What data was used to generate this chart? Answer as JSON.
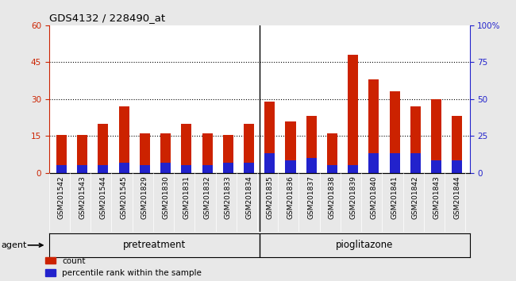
{
  "title": "GDS4132 / 228490_at",
  "samples": [
    "GSM201542",
    "GSM201543",
    "GSM201544",
    "GSM201545",
    "GSM201829",
    "GSM201830",
    "GSM201831",
    "GSM201832",
    "GSM201833",
    "GSM201834",
    "GSM201835",
    "GSM201836",
    "GSM201837",
    "GSM201838",
    "GSM201839",
    "GSM201840",
    "GSM201841",
    "GSM201842",
    "GSM201843",
    "GSM201844"
  ],
  "count_values": [
    15.5,
    15.5,
    20.0,
    27.0,
    16.0,
    16.0,
    20.0,
    16.0,
    15.5,
    20.0,
    29.0,
    21.0,
    23.0,
    16.0,
    48.0,
    38.0,
    33.0,
    27.0,
    30.0,
    23.0
  ],
  "percentile_values": [
    3,
    3,
    3,
    4,
    3,
    4,
    3,
    3,
    4,
    4,
    8,
    5,
    6,
    3,
    3,
    8,
    8,
    8,
    5,
    5
  ],
  "group1_count": 10,
  "group1_label": "pretreatment",
  "group2_label": "pioglitazone",
  "group1_color": "#99ee99",
  "group2_color": "#33cc33",
  "bar_color_red": "#cc2200",
  "bar_color_blue": "#2222cc",
  "ylim_left": [
    0,
    60
  ],
  "ylim_right": [
    0,
    100
  ],
  "yticks_left": [
    0,
    15,
    30,
    45,
    60
  ],
  "yticks_right": [
    0,
    25,
    50,
    75,
    100
  ],
  "ytick_right_labels": [
    "0",
    "25",
    "50",
    "75",
    "100%"
  ],
  "agent_label": "agent",
  "legend_count": "count",
  "legend_percentile": "percentile rank within the sample",
  "bg_color": "#e8e8e8",
  "plot_bg": "#ffffff",
  "left_axis_color": "#cc2200",
  "right_axis_color": "#2222cc",
  "grid_color": "#000000",
  "grid_yticks": [
    15,
    30,
    45
  ],
  "bar_width": 0.5,
  "xlabel_bg": "#c8c8c8"
}
